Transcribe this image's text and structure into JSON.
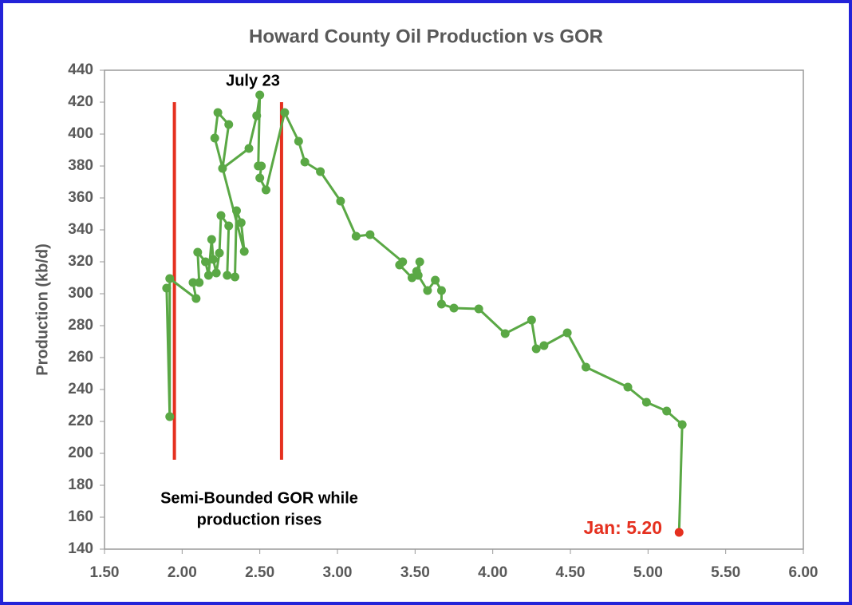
{
  "chart_data": {
    "type": "line",
    "title": "Howard County Oil Production vs GOR",
    "y_label": "Production (kb/d)",
    "x": [
      1.9,
      1.92,
      1.92,
      2.09,
      2.07,
      2.11,
      2.1,
      2.15,
      2.17,
      2.19,
      2.2,
      2.22,
      2.24,
      2.25,
      2.3,
      2.29,
      2.34,
      2.35,
      2.38,
      2.4,
      2.21,
      2.23,
      2.3,
      2.26,
      2.43,
      2.48,
      2.5,
      2.49,
      2.51,
      2.5,
      2.54,
      2.66,
      2.75,
      2.79,
      2.89,
      3.02,
      3.12,
      3.21,
      3.42,
      3.4,
      3.48,
      3.51,
      3.53,
      3.52,
      3.58,
      3.63,
      3.67,
      3.67,
      3.75,
      3.91,
      4.08,
      4.25,
      4.28,
      4.33,
      4.48,
      4.6,
      4.87,
      4.99,
      5.12,
      5.22,
      5.2
    ],
    "series": [
      {
        "color": "#5aa845",
        "values": [
          303.5,
          223,
          309.5,
          297,
          307,
          307,
          326,
          320,
          311.5,
          334,
          321.5,
          313,
          325.5,
          349,
          342.5,
          311.5,
          310.5,
          352,
          344.5,
          326.5,
          397.5,
          413.5,
          406,
          378.5,
          391,
          411.5,
          424.5,
          380,
          380,
          372.5,
          365,
          413.5,
          395.5,
          382.5,
          376.5,
          358,
          336,
          337,
          320,
          318,
          310,
          314,
          320,
          311.5,
          302,
          308.5,
          302,
          293.5,
          291,
          290.5,
          275,
          283.5,
          265.5,
          267.5,
          275.5,
          254,
          241.5,
          232,
          226.5,
          218,
          150.5
        ]
      }
    ],
    "last_point_color": "#e5301f",
    "xlim": [
      1.5,
      6.0
    ],
    "xticks": [
      {
        "value": 1.5,
        "label": "1.50"
      },
      {
        "value": 2.0,
        "label": "2.00"
      },
      {
        "value": 2.5,
        "label": "2.50"
      },
      {
        "value": 3.0,
        "label": "3.00"
      },
      {
        "value": 3.5,
        "label": "3.50"
      },
      {
        "value": 4.0,
        "label": "4.00"
      },
      {
        "value": 4.5,
        "label": "4.50"
      },
      {
        "value": 5.0,
        "label": "5.00"
      },
      {
        "value": 5.5,
        "label": "5.50"
      },
      {
        "value": 6.0,
        "label": "6.00"
      }
    ],
    "ylim": [
      140,
      440
    ],
    "yticks": [
      140,
      160,
      180,
      200,
      220,
      240,
      260,
      280,
      300,
      320,
      340,
      360,
      380,
      400,
      420,
      440
    ],
    "grid": false,
    "reference_lines": {
      "color": "#e5301f",
      "x": [
        1.95,
        2.64
      ],
      "y": [
        196,
        420
      ]
    },
    "annotations": {
      "peak": "July 23",
      "band_line1": "Semi-Bounded GOR while",
      "band_line2": "production rises",
      "latest": "Jan: 5.20",
      "latest_color": "#e5301f"
    }
  }
}
